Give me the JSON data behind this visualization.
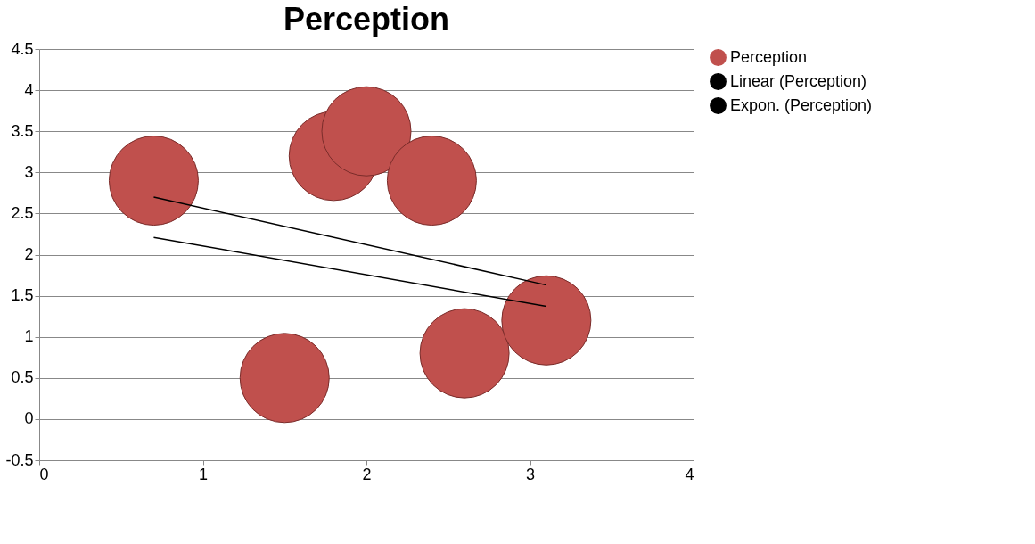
{
  "chart_data": {
    "type": "bubble",
    "title": "Perception",
    "xlim": [
      0,
      4
    ],
    "xticks": [
      0,
      1,
      2,
      3,
      4
    ],
    "ylim": [
      -0.5,
      4.5
    ],
    "yticks": [
      -0.5,
      0,
      0.5,
      1,
      1.5,
      2,
      2.5,
      3,
      3.5,
      4,
      4.5
    ],
    "grid": "y",
    "legend": "right",
    "series": [
      {
        "name": "Perception",
        "color": "#c0504d",
        "x": [
          0.7,
          1.5,
          1.8,
          2.0,
          2.4,
          2.6,
          3.1
        ],
        "values": [
          2.9,
          0.5,
          3.2,
          3.5,
          2.9,
          0.8,
          1.2
        ],
        "sizes": [
          1,
          1,
          1,
          1,
          1,
          1,
          1
        ]
      },
      {
        "name": "Linear (Perception)",
        "type": "line",
        "color": "#000000",
        "x": [
          0.7,
          3.1
        ],
        "values": [
          2.7,
          1.63
        ]
      },
      {
        "name": "Expon. (Perception)",
        "type": "line",
        "color": "#000000",
        "x": [
          0.7,
          3.1
        ],
        "values": [
          2.21,
          1.37
        ]
      }
    ]
  }
}
